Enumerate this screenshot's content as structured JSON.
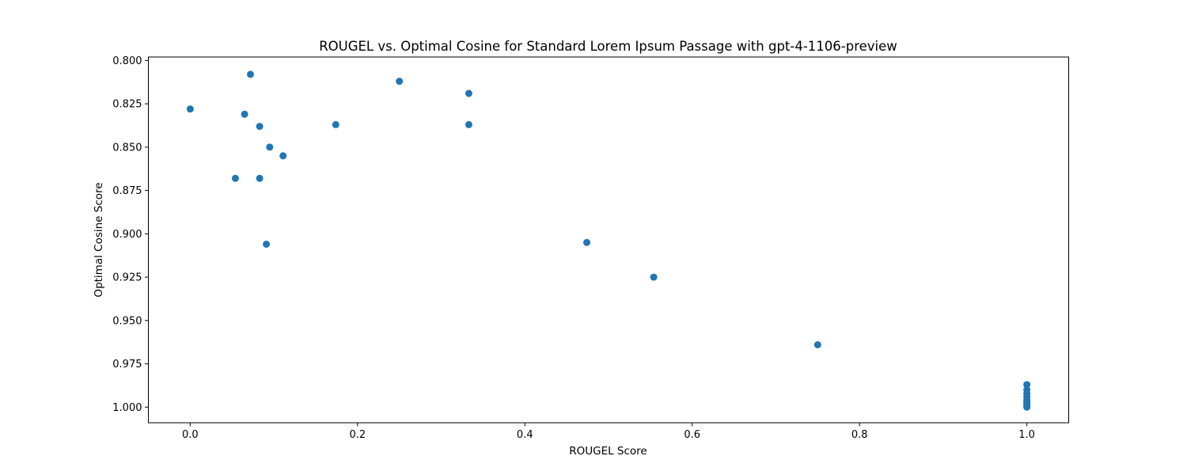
{
  "chart_data": {
    "type": "scatter",
    "title": "ROUGEL vs. Optimal Cosine for Standard Lorem Ipsum Passage with gpt-4-1106-preview",
    "xlabel": "ROUGEL Score",
    "ylabel": "Optimal Cosine Score",
    "xlim": [
      -0.05,
      1.05
    ],
    "ylim": [
      1.009,
      0.798
    ],
    "y_inverted": true,
    "grid": false,
    "xticks": [
      0.0,
      0.2,
      0.4,
      0.6,
      0.8,
      1.0
    ],
    "xtick_labels": [
      "0.0",
      "0.2",
      "0.4",
      "0.6",
      "0.8",
      "1.0"
    ],
    "yticks": [
      0.8,
      0.825,
      0.85,
      0.875,
      0.9,
      0.925,
      0.95,
      0.975,
      1.0
    ],
    "ytick_labels": [
      "0.800",
      "0.825",
      "0.850",
      "0.875",
      "0.900",
      "0.925",
      "0.950",
      "0.975",
      "1.000"
    ],
    "series": [
      {
        "color": "#1f77b4",
        "x": [
          0.0,
          0.054,
          0.065,
          0.072,
          0.083,
          0.083,
          0.091,
          0.095,
          0.111,
          0.174,
          0.25,
          0.333,
          0.333,
          0.474,
          0.554,
          0.75,
          1.0,
          1.0,
          1.0,
          1.0,
          1.0,
          1.0,
          1.0,
          1.0,
          1.0,
          1.0
        ],
        "y": [
          0.828,
          0.868,
          0.831,
          0.808,
          0.838,
          0.868,
          0.906,
          0.85,
          0.855,
          0.837,
          0.812,
          0.819,
          0.837,
          0.905,
          0.925,
          0.964,
          0.987,
          0.99,
          0.992,
          0.994,
          0.996,
          0.997,
          0.998,
          0.999,
          0.9995,
          1.0
        ]
      }
    ]
  }
}
